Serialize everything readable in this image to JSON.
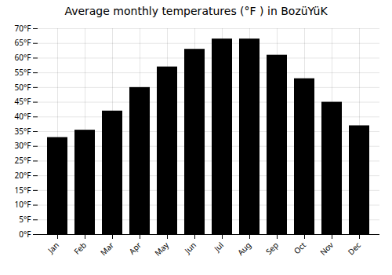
{
  "chart_data": {
    "type": "bar",
    "title": "Average monthly temperatures (°F ) in BozüYüK",
    "categories": [
      "Jan",
      "Feb",
      "Mar",
      "Apr",
      "May",
      "Jun",
      "Jul",
      "Aug",
      "Sep",
      "Oct",
      "Nov",
      "Dec"
    ],
    "values": [
      33,
      35.5,
      42,
      50,
      57,
      63,
      66.5,
      66.5,
      61,
      53,
      45,
      37
    ],
    "ylim": [
      0,
      70
    ],
    "yticks": [
      {
        "value": 0,
        "label": "0°F"
      },
      {
        "value": 5,
        "label": "5°F"
      },
      {
        "value": 10,
        "label": "10°F"
      },
      {
        "value": 15,
        "label": "15°F"
      },
      {
        "value": 20,
        "label": "20°F"
      },
      {
        "value": 25,
        "label": "25°F"
      },
      {
        "value": 30,
        "label": "30°F"
      },
      {
        "value": 35,
        "label": "35°F"
      },
      {
        "value": 40,
        "label": "40°F"
      },
      {
        "value": 45,
        "label": "45°F"
      },
      {
        "value": 50,
        "label": "50°F"
      },
      {
        "value": 55,
        "label": "55°F"
      },
      {
        "value": 60,
        "label": "60°F"
      },
      {
        "value": 65,
        "label": "65°F"
      },
      {
        "value": 70,
        "label": "70°F"
      }
    ],
    "grid": true
  }
}
